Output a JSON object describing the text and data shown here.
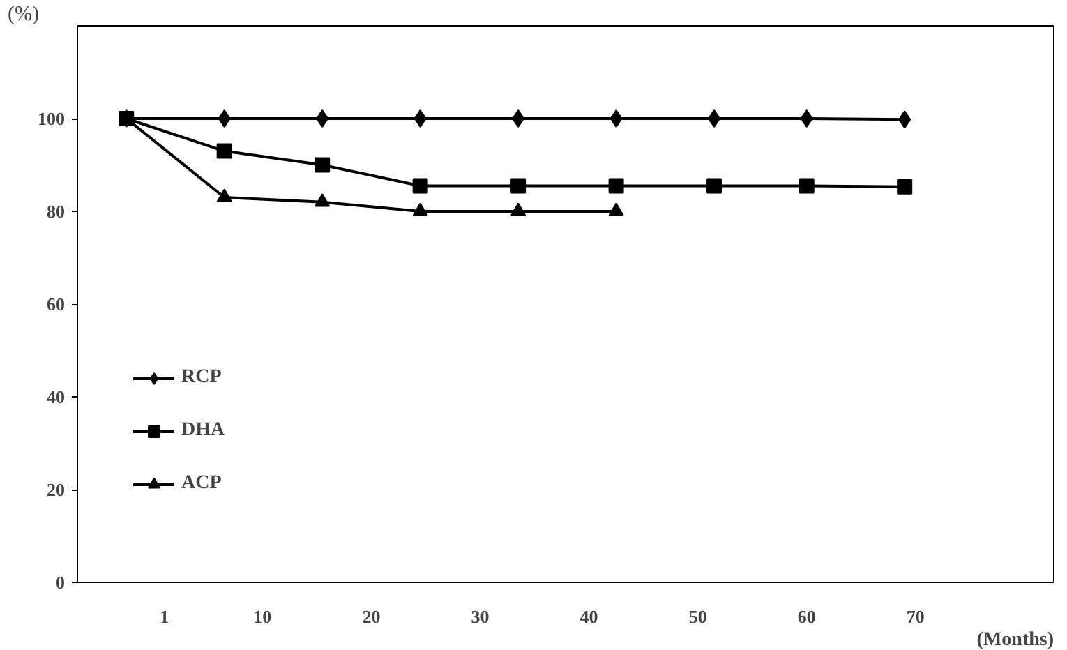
{
  "chart_data": {
    "type": "line",
    "xlabel": "(Months)",
    "ylabel": "(%)",
    "x": [
      -2.5,
      6.5,
      15.5,
      24.5,
      33.5,
      42.5,
      51.5,
      60,
      69
    ],
    "xlim": [
      -7,
      82.7
    ],
    "xticks": [
      1,
      10,
      20,
      30,
      40,
      50,
      60,
      70
    ],
    "ylim": [
      0,
      120
    ],
    "yticks": [
      0,
      20,
      40,
      60,
      80,
      100
    ],
    "grid": false,
    "legend": "bottom left",
    "series": [
      {
        "name": "RCP",
        "color": "#000000",
        "marker": "diamond",
        "values": [
          100,
          100,
          100,
          100,
          100,
          100,
          100,
          100,
          99.8
        ]
      },
      {
        "name": "DHA",
        "color": "#000000",
        "marker": "square",
        "values": [
          100,
          93,
          90,
          85.5,
          85.5,
          85.5,
          85.5,
          85.5,
          85.3
        ]
      },
      {
        "name": "ACP",
        "color": "#000000",
        "marker": "triangle",
        "values": [
          100,
          83,
          82,
          80,
          80,
          80,
          null,
          null,
          null
        ]
      }
    ]
  }
}
